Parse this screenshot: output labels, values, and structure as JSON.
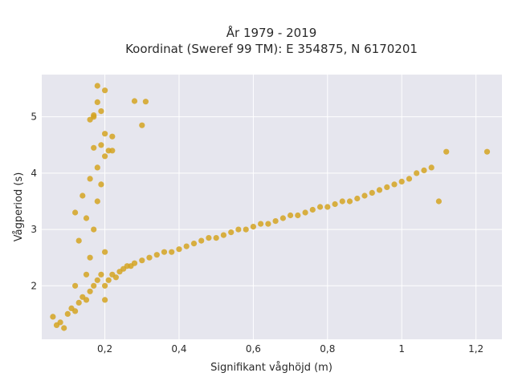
{
  "chart_data": {
    "type": "scatter",
    "title": [
      "År 1979 - 2019",
      "Koordinat (Sweref 99 TM): E 354875, N 6170201"
    ],
    "xlabel": "Signifikant våghöjd (m)",
    "ylabel": "Vågperiod (s)",
    "xlim": [
      0.03,
      1.27
    ],
    "ylim": [
      1.05,
      5.75
    ],
    "xticks": [
      0.2,
      0.4,
      0.6,
      0.8,
      1.0,
      1.2
    ],
    "xtick_labels": [
      "0,2",
      "0,4",
      "0,6",
      "0,8",
      "1",
      "1,2"
    ],
    "yticks": [
      2,
      3,
      4,
      5
    ],
    "ytick_labels": [
      "2",
      "3",
      "4",
      "5"
    ],
    "grid": true,
    "legend": "none",
    "colors": {
      "marker": "#d4a321",
      "plot_bg": "#e6e6ee",
      "grid": "#ffffff"
    },
    "series": [
      {
        "x": [
          0.06,
          0.07,
          0.08,
          0.09,
          0.1,
          0.11,
          0.12,
          0.12,
          0.13,
          0.14,
          0.15,
          0.15,
          0.16,
          0.16,
          0.17,
          0.17,
          0.18,
          0.18,
          0.19,
          0.19,
          0.2,
          0.2,
          0.21,
          0.22,
          0.23,
          0.24,
          0.25,
          0.26,
          0.27,
          0.28,
          0.3,
          0.32,
          0.34,
          0.36,
          0.38,
          0.4,
          0.42,
          0.44,
          0.46,
          0.48,
          0.5,
          0.52,
          0.54,
          0.56,
          0.58,
          0.6,
          0.62,
          0.64,
          0.66,
          0.68,
          0.7,
          0.72,
          0.74,
          0.76,
          0.78,
          0.8,
          0.82,
          0.84,
          0.86,
          0.88,
          0.9,
          0.92,
          0.94,
          0.96,
          0.98,
          1.0,
          1.02,
          1.04,
          1.06,
          1.08,
          1.1,
          1.12,
          1.23,
          0.12,
          0.14,
          0.16,
          0.18,
          0.2,
          0.22,
          0.13,
          0.15,
          0.17,
          0.19,
          0.21,
          0.16,
          0.17,
          0.19,
          0.2,
          0.22,
          0.3,
          0.18,
          0.17,
          0.18,
          0.2,
          0.28,
          0.31,
          0.2
        ],
        "y": [
          1.45,
          1.3,
          1.35,
          1.25,
          1.5,
          1.6,
          1.55,
          2.0,
          1.7,
          1.8,
          1.75,
          2.2,
          1.9,
          2.5,
          2.0,
          3.0,
          2.1,
          3.5,
          2.2,
          3.8,
          2.0,
          2.6,
          2.1,
          2.2,
          2.15,
          2.25,
          2.3,
          2.35,
          2.35,
          2.4,
          2.45,
          2.5,
          2.55,
          2.6,
          2.6,
          2.65,
          2.7,
          2.75,
          2.8,
          2.85,
          2.85,
          2.9,
          2.95,
          3.0,
          3.0,
          3.05,
          3.1,
          3.1,
          3.15,
          3.2,
          3.25,
          3.25,
          3.3,
          3.35,
          3.4,
          3.4,
          3.45,
          3.5,
          3.5,
          3.55,
          3.6,
          3.65,
          3.7,
          3.75,
          3.8,
          3.85,
          3.9,
          4.0,
          4.05,
          4.1,
          3.5,
          4.38,
          4.38,
          3.3,
          3.6,
          3.9,
          4.1,
          4.3,
          4.4,
          2.8,
          3.2,
          4.45,
          4.5,
          4.4,
          4.95,
          5.0,
          5.1,
          4.7,
          4.65,
          4.85,
          5.55,
          5.03,
          5.26,
          5.47,
          5.28,
          5.27,
          1.75
        ]
      }
    ]
  }
}
